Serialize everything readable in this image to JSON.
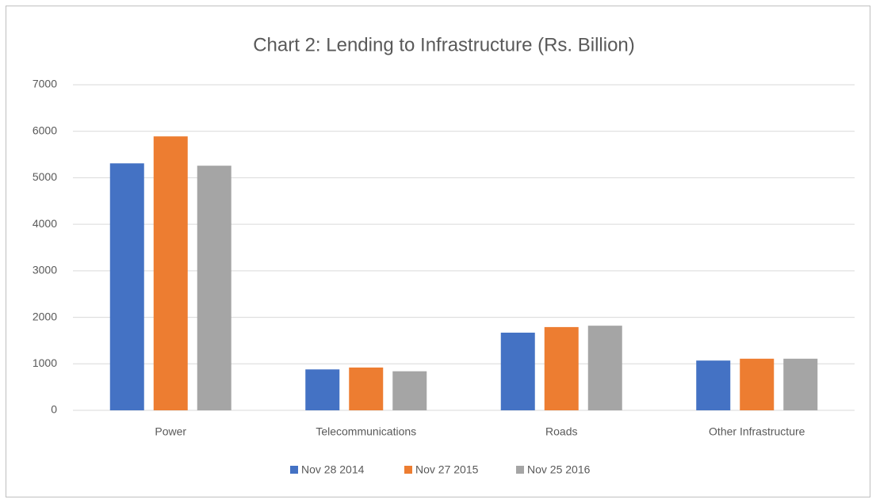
{
  "chart_data": {
    "type": "bar",
    "title": "Chart 2: Lending to Infrastructure (Rs. Billion)",
    "categories": [
      "Power",
      "Telecommunications",
      "Roads",
      "Other Infrastructure"
    ],
    "series": [
      {
        "name": "Nov 28 2014",
        "color": "#4472c4",
        "values": [
          5310,
          880,
          1670,
          1070
        ]
      },
      {
        "name": "Nov 27 2015",
        "color": "#ed7d31",
        "values": [
          5890,
          920,
          1790,
          1110
        ]
      },
      {
        "name": "Nov 25 2016",
        "color": "#a5a5a5",
        "values": [
          5260,
          840,
          1820,
          1110
        ]
      }
    ],
    "ylim": [
      0,
      7000
    ],
    "yticks": [
      0,
      1000,
      2000,
      3000,
      4000,
      5000,
      6000,
      7000
    ],
    "grid": true,
    "legend": "bottom"
  }
}
